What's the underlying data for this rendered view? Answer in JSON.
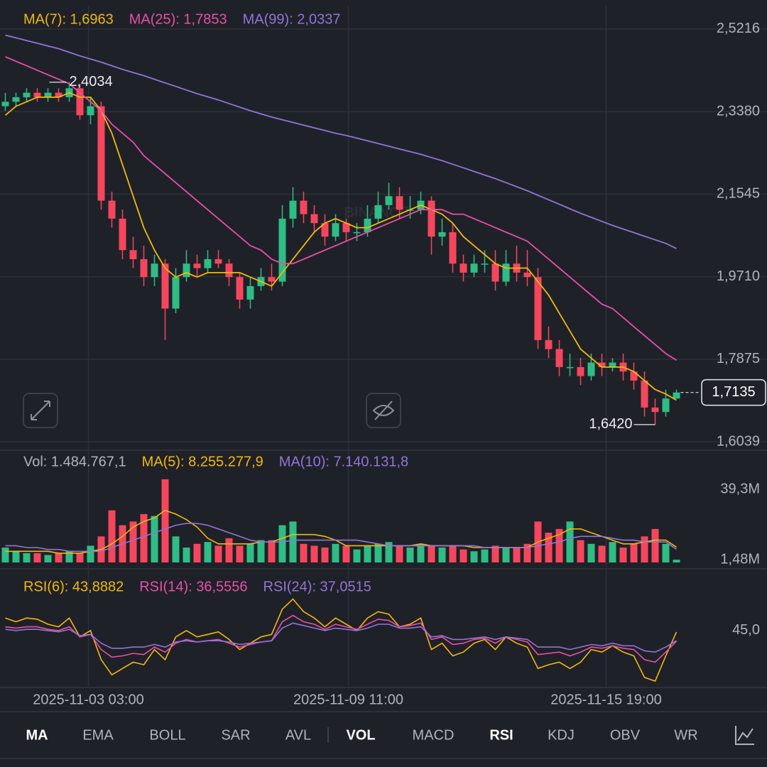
{
  "chart_data": [
    {
      "type": "candlestick",
      "watermark": "BINANCE",
      "up_color": "#2ebd85",
      "down_color": "#f6465d",
      "ylim": [
        1.585,
        2.5736
      ],
      "grid": true,
      "yticks": [
        {
          "value": 2.5216,
          "label": "2,5216"
        },
        {
          "value": 2.338,
          "label": "2,3380"
        },
        {
          "value": 2.1545,
          "label": "2,1545"
        },
        {
          "value": 1.971,
          "label": "1,9710"
        },
        {
          "value": 1.7875,
          "label": "1,7875"
        },
        {
          "value": 1.6039,
          "label": "1,6039"
        }
      ],
      "open": [
        2.35,
        2.36,
        2.37,
        2.38,
        2.37,
        2.38,
        2.37,
        2.39,
        2.33,
        2.35,
        2.14,
        2.1,
        2.03,
        2.01,
        1.97,
        2.0,
        1.9,
        1.97,
        2.0,
        1.99,
        2.01,
        2.0,
        1.97,
        1.92,
        1.95,
        1.97,
        1.96,
        2.1,
        2.14,
        2.11,
        2.09,
        2.06,
        2.09,
        2.07,
        2.07,
        2.1,
        2.13,
        2.15,
        2.12,
        2.12,
        2.14,
        2.06,
        2.07,
        2.0,
        1.98,
        2.0,
        2.0,
        1.96,
        2.0,
        1.98,
        1.97,
        1.83,
        1.81,
        1.77,
        1.77,
        1.75,
        1.78,
        1.77,
        1.78,
        1.76,
        1.74,
        1.68,
        1.67,
        1.7
      ],
      "high": [
        2.38,
        2.38,
        2.39,
        2.39,
        2.39,
        2.39,
        2.4034,
        2.4,
        2.37,
        2.36,
        2.16,
        2.12,
        2.06,
        2.04,
        2.02,
        2.01,
        1.99,
        2.03,
        2.02,
        2.03,
        2.03,
        2.01,
        1.98,
        1.97,
        1.99,
        2.0,
        2.13,
        2.17,
        2.16,
        2.13,
        2.11,
        2.11,
        2.1,
        2.09,
        2.13,
        2.16,
        2.18,
        2.17,
        2.15,
        2.16,
        2.15,
        2.1,
        2.09,
        2.02,
        2.02,
        2.03,
        2.03,
        2.03,
        2.04,
        2.03,
        1.99,
        1.86,
        1.83,
        1.8,
        1.79,
        1.8,
        1.8,
        1.79,
        1.8,
        1.78,
        1.76,
        1.7,
        1.72,
        1.72
      ],
      "low": [
        2.34,
        2.35,
        2.36,
        2.36,
        2.36,
        2.36,
        2.36,
        2.32,
        2.31,
        2.12,
        2.08,
        2.01,
        1.99,
        1.95,
        1.95,
        1.83,
        1.89,
        1.96,
        1.97,
        1.98,
        1.99,
        1.95,
        1.9,
        1.9,
        1.94,
        1.94,
        1.95,
        2.08,
        2.09,
        2.07,
        2.04,
        2.05,
        2.05,
        2.05,
        2.06,
        2.09,
        2.12,
        2.1,
        2.1,
        2.11,
        2.02,
        2.04,
        1.98,
        1.96,
        1.97,
        1.98,
        1.94,
        1.95,
        1.96,
        1.95,
        1.81,
        1.79,
        1.75,
        1.75,
        1.73,
        1.74,
        1.75,
        1.76,
        1.74,
        1.72,
        1.66,
        1.642,
        1.66,
        1.7
      ],
      "close": [
        2.36,
        2.37,
        2.38,
        2.37,
        2.38,
        2.37,
        2.39,
        2.33,
        2.35,
        2.14,
        2.1,
        2.03,
        2.01,
        1.97,
        2.0,
        1.9,
        1.97,
        2.0,
        1.99,
        2.01,
        2.0,
        1.97,
        1.92,
        1.95,
        1.97,
        1.96,
        2.1,
        2.14,
        2.11,
        2.09,
        2.06,
        2.09,
        2.07,
        2.07,
        2.1,
        2.13,
        2.15,
        2.12,
        2.12,
        2.14,
        2.06,
        2.07,
        2.0,
        1.98,
        2.0,
        2.0,
        1.96,
        2.0,
        1.98,
        1.97,
        1.83,
        1.81,
        1.77,
        1.77,
        1.75,
        1.78,
        1.77,
        1.78,
        1.76,
        1.74,
        1.68,
        1.67,
        1.7,
        1.7135
      ],
      "series": [
        {
          "name": "MA(7): 1,6963",
          "color": "#f0b90b",
          "values": [
            2.33,
            2.35,
            2.36,
            2.37,
            2.37,
            2.37,
            2.38,
            2.37,
            2.37,
            2.34,
            2.29,
            2.22,
            2.15,
            2.08,
            2.03,
            1.99,
            1.97,
            1.98,
            1.97,
            1.98,
            1.98,
            1.98,
            1.98,
            1.97,
            1.96,
            1.95,
            1.98,
            2.01,
            2.04,
            2.07,
            2.09,
            2.1,
            2.09,
            2.08,
            2.08,
            2.09,
            2.1,
            2.11,
            2.12,
            2.13,
            2.12,
            2.11,
            2.09,
            2.06,
            2.04,
            2.02,
            2.0,
            1.99,
            1.99,
            1.99,
            1.96,
            1.93,
            1.89,
            1.85,
            1.81,
            1.79,
            1.77,
            1.77,
            1.77,
            1.76,
            1.74,
            1.72,
            1.71,
            1.6963
          ]
        },
        {
          "name": "MA(25): 1,7853",
          "color": "#e84fa8",
          "values": [
            2.46,
            2.45,
            2.44,
            2.43,
            2.42,
            2.41,
            2.4,
            2.38,
            2.36,
            2.34,
            2.31,
            2.29,
            2.27,
            2.24,
            2.22,
            2.2,
            2.18,
            2.16,
            2.14,
            2.12,
            2.1,
            2.08,
            2.06,
            2.04,
            2.03,
            2.01,
            2.0,
            2.0,
            2.01,
            2.02,
            2.03,
            2.04,
            2.05,
            2.06,
            2.07,
            2.08,
            2.09,
            2.1,
            2.11,
            2.12,
            2.12,
            2.12,
            2.11,
            2.11,
            2.1,
            2.09,
            2.08,
            2.07,
            2.06,
            2.05,
            2.03,
            2.01,
            1.99,
            1.97,
            1.95,
            1.93,
            1.91,
            1.9,
            1.88,
            1.86,
            1.84,
            1.82,
            1.8,
            1.7853
          ]
        },
        {
          "name": "MA(99): 2,0337",
          "color": "#9274d8",
          "values": [
            2.508,
            2.502,
            2.496,
            2.49,
            2.484,
            2.478,
            2.47,
            2.462,
            2.455,
            2.448,
            2.44,
            2.432,
            2.425,
            2.418,
            2.41,
            2.402,
            2.394,
            2.386,
            2.378,
            2.371,
            2.364,
            2.356,
            2.348,
            2.34,
            2.333,
            2.326,
            2.32,
            2.314,
            2.308,
            2.302,
            2.296,
            2.29,
            2.285,
            2.279,
            2.273,
            2.267,
            2.261,
            2.255,
            2.249,
            2.243,
            2.236,
            2.229,
            2.221,
            2.213,
            2.205,
            2.197,
            2.189,
            2.18,
            2.171,
            2.162,
            2.152,
            2.142,
            2.132,
            2.122,
            2.112,
            2.103,
            2.094,
            2.085,
            2.077,
            2.069,
            2.061,
            2.053,
            2.045,
            2.0337
          ]
        }
      ],
      "annotations": [
        {
          "label": "2,4034",
          "value": 2.4034,
          "index": 6
        },
        {
          "label": "1,6420",
          "value": 1.642,
          "index": 61
        }
      ],
      "last_price": {
        "label": "1,7135",
        "value": 1.7135
      }
    },
    {
      "type": "bar",
      "header": "Vol: 1.484.767,1",
      "ylim": [
        0,
        58
      ],
      "yticks": [
        {
          "value": 39.3,
          "label": "39,3M"
        },
        {
          "value": 1.48,
          "label": "1,48M"
        }
      ],
      "values": [
        8,
        6,
        5,
        5,
        4,
        5,
        6,
        5,
        9,
        14,
        28,
        20,
        22,
        26,
        25,
        44.7,
        14,
        8,
        10,
        11,
        9,
        13,
        9,
        10,
        12,
        12,
        20,
        22,
        10,
        9,
        8,
        10,
        9,
        7,
        9,
        10,
        11,
        9,
        8,
        10,
        9,
        8,
        9,
        7,
        6,
        7,
        9,
        8,
        8,
        10,
        22,
        16,
        18,
        22,
        12,
        10,
        9,
        11,
        8,
        10,
        14,
        18,
        10,
        1.4847671
      ],
      "series": [
        {
          "name": "MA(5): 8.255.277,9",
          "color": "#f0b90b",
          "values": [
            6,
            6,
            6,
            6,
            6,
            5,
            5,
            5,
            6,
            7,
            10,
            14,
            19,
            22,
            24,
            28,
            26,
            23,
            19,
            13,
            10,
            10,
            10,
            10,
            11,
            11,
            13,
            15,
            15,
            15,
            14,
            12,
            9,
            9,
            9,
            9,
            9,
            9,
            9,
            10,
            9,
            9,
            9,
            9,
            8,
            8,
            8,
            8,
            8,
            8,
            11,
            13,
            15,
            18,
            18,
            16,
            14,
            12,
            10,
            10,
            11,
            12,
            12,
            8.2552779
          ]
        },
        {
          "name": "MA(10): 7.140.131,8",
          "color": "#9274d8",
          "values": [
            9,
            9,
            8,
            8,
            7,
            7,
            6,
            6,
            6,
            6,
            8,
            10,
            12,
            14,
            16,
            18,
            20,
            21,
            21,
            20,
            18,
            16,
            14,
            12,
            11,
            11,
            11,
            12,
            12,
            12,
            12,
            12,
            12,
            12,
            11,
            10,
            9,
            9,
            9,
            9,
            9,
            9,
            9,
            9,
            9,
            8,
            8,
            8,
            8,
            8,
            9,
            10,
            11,
            13,
            14,
            14,
            14,
            13,
            12,
            12,
            11,
            11,
            11,
            7.1401318
          ]
        }
      ]
    },
    {
      "type": "line",
      "ylim": [
        0,
        86
      ],
      "yticks": [
        {
          "value": 45,
          "label": "45,0"
        }
      ],
      "xticks": [
        {
          "value": 7.8,
          "label": "2025-11-03 03:00"
        },
        {
          "value": 32.2,
          "label": "2025-11-09 11:00"
        },
        {
          "value": 56.4,
          "label": "2025-11-15 19:00"
        }
      ],
      "series": [
        {
          "name": "RSI(6): 43,8882",
          "color": "#f0b90b",
          "values": [
            55,
            52,
            55,
            54,
            50,
            48,
            55,
            40,
            45,
            22,
            10,
            15,
            20,
            18,
            30,
            22,
            40,
            45,
            40,
            42,
            44,
            38,
            30,
            35,
            40,
            42,
            62,
            70,
            60,
            55,
            48,
            55,
            50,
            45,
            55,
            60,
            58,
            48,
            50,
            55,
            30,
            35,
            25,
            28,
            35,
            38,
            30,
            40,
            35,
            32,
            15,
            18,
            20,
            15,
            20,
            30,
            28,
            33,
            28,
            25,
            8,
            5,
            25,
            43.8882
          ]
        },
        {
          "name": "RSI(14): 36,5556",
          "color": "#e84fa8",
          "values": [
            48,
            47,
            48,
            48,
            46,
            45,
            48,
            40,
            42,
            30,
            24,
            25,
            27,
            26,
            32,
            28,
            35,
            38,
            36,
            37,
            38,
            35,
            32,
            34,
            36,
            37,
            52,
            57,
            52,
            50,
            46,
            50,
            48,
            46,
            50,
            54,
            53,
            48,
            49,
            51,
            38,
            40,
            34,
            35,
            38,
            39,
            35,
            40,
            38,
            36,
            26,
            27,
            28,
            25,
            28,
            32,
            31,
            33,
            31,
            30,
            22,
            20,
            28,
            36.5556
          ]
        },
        {
          "name": "RSI(24): 37,0515",
          "color": "#9274d8",
          "values": [
            46,
            45,
            46,
            46,
            45,
            44,
            46,
            41,
            42,
            35,
            31,
            31,
            32,
            32,
            34,
            32,
            36,
            37,
            36,
            37,
            37,
            36,
            34,
            35,
            36,
            37,
            47,
            51,
            49,
            47,
            45,
            47,
            46,
            45,
            47,
            50,
            50,
            47,
            47,
            48,
            40,
            41,
            38,
            38,
            39,
            40,
            38,
            40,
            39,
            38,
            32,
            32,
            32,
            30,
            32,
            34,
            33,
            35,
            33,
            33,
            29,
            28,
            32,
            37.0515
          ]
        }
      ]
    }
  ],
  "toolbar": [
    {
      "label": "MA",
      "active": true
    },
    {
      "label": "EMA",
      "active": false
    },
    {
      "label": "BOLL",
      "active": false
    },
    {
      "label": "SAR",
      "active": false
    },
    {
      "label": "AVL",
      "active": false
    },
    {
      "label": "VOL",
      "active": true
    },
    {
      "label": "MACD",
      "active": false
    },
    {
      "label": "RSI",
      "active": true
    },
    {
      "label": "KDJ",
      "active": false
    },
    {
      "label": "OBV",
      "active": false
    },
    {
      "label": "WR",
      "active": false
    }
  ]
}
